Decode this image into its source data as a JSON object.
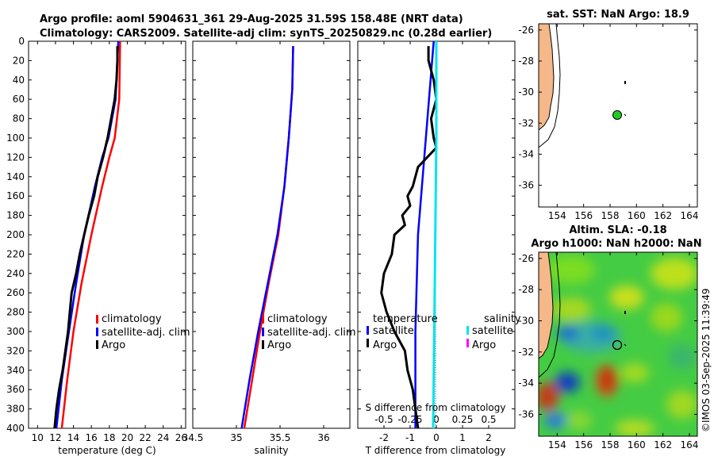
{
  "header": {
    "line1": "Argo profile: aoml 5904631_361 29-Aug-2025 31.59S 158.48E (NRT data)",
    "line2": "Climatology: CARS2009. Satellite-adj clim: synTS_20250829.nc (0.28d earlier)"
  },
  "colors": {
    "climatology": "#ff0000",
    "satellite": "#0000ff",
    "argo": "#000000",
    "sat_salinity": "#00e5ee",
    "argo_salinity": "#ff00ff",
    "land": "#f5b88a"
  },
  "chart_data": [
    {
      "type": "line",
      "id": "temperature",
      "xlabel": "temperature (deg C)",
      "ylim": [
        0,
        400
      ],
      "xlim": [
        9,
        26.5
      ],
      "xticks": [
        "10",
        "12",
        "14",
        "16",
        "18",
        "20",
        "22",
        "24",
        "26"
      ],
      "yticks": [
        "0",
        "20",
        "40",
        "60",
        "80",
        "100",
        "120",
        "140",
        "160",
        "180",
        "200",
        "220",
        "240",
        "260",
        "280",
        "300",
        "320",
        "340",
        "360",
        "380",
        "400"
      ],
      "legend": [
        "climatology",
        "satellite-adj. clim",
        "Argo"
      ],
      "series": [
        {
          "name": "climatology",
          "depth": [
            0,
            60,
            100,
            120,
            150,
            200,
            250,
            300,
            350,
            400
          ],
          "values": [
            19.2,
            19.1,
            18.6,
            18.0,
            17.2,
            16.0,
            14.9,
            14.0,
            13.3,
            12.7
          ]
        },
        {
          "name": "satellite-adj. clim",
          "depth": [
            0,
            60,
            100,
            120,
            150,
            200,
            250,
            300,
            350,
            400
          ],
          "values": [
            19.0,
            18.7,
            17.9,
            17.2,
            16.4,
            15.2,
            14.3,
            13.5,
            12.7,
            12.1
          ]
        },
        {
          "name": "Argo",
          "depth": [
            5,
            20,
            40,
            60,
            80,
            100,
            120,
            140,
            160,
            180,
            200,
            220,
            240,
            260,
            280,
            300,
            320,
            340,
            360,
            380,
            400
          ],
          "values": [
            18.9,
            18.9,
            18.8,
            18.6,
            18.2,
            17.8,
            17.3,
            16.7,
            16.3,
            15.7,
            15.2,
            14.7,
            14.3,
            13.8,
            13.6,
            13.4,
            13.1,
            12.8,
            12.4,
            12.1,
            11.9
          ]
        }
      ]
    },
    {
      "type": "line",
      "id": "salinity",
      "xlabel": "salinity",
      "ylim": [
        0,
        400
      ],
      "xlim": [
        34.5,
        36.3
      ],
      "xticks": [
        "34.5",
        "35",
        "35.5",
        "36"
      ],
      "legend": [
        "climatology",
        "satellite-adj. clim",
        "Argo"
      ],
      "series": [
        {
          "name": "climatology",
          "depth": [
            5,
            50,
            100,
            150,
            200,
            250,
            300,
            350,
            400
          ],
          "values": [
            35.65,
            35.64,
            35.6,
            35.55,
            35.48,
            35.37,
            35.27,
            35.18,
            35.09
          ]
        },
        {
          "name": "satellite-adj. clim",
          "depth": [
            5,
            50,
            100,
            150,
            200,
            250,
            300,
            350,
            400
          ],
          "values": [
            35.65,
            35.64,
            35.6,
            35.55,
            35.47,
            35.36,
            35.25,
            35.15,
            35.06
          ]
        }
      ]
    },
    {
      "type": "line",
      "id": "difference",
      "xlabel": "T difference from climatology",
      "xlabel_top": "S difference from climatology",
      "ylim": [
        0,
        400
      ],
      "xlim": [
        -3,
        3
      ],
      "xticks": [
        "-2",
        "-1",
        "0",
        "1",
        "2"
      ],
      "xticks_top": [
        "-0.5",
        "-0.25",
        "0",
        "0.25",
        "0.5"
      ],
      "legend_headers": [
        "temperature",
        "salinity"
      ],
      "legend_left": [
        "satellite",
        "Argo"
      ],
      "legend_right": [
        "satellite",
        "Argo"
      ],
      "series": [
        {
          "name": "T satellite",
          "depth": [
            0,
            100,
            200,
            300,
            400
          ],
          "values": [
            -0.1,
            -0.4,
            -0.7,
            -0.8,
            -0.8
          ]
        },
        {
          "name": "T Argo",
          "depth": [
            5,
            20,
            40,
            60,
            80,
            100,
            110,
            130,
            150,
            160,
            170,
            180,
            190,
            200,
            220,
            240,
            260,
            280,
            300,
            320,
            340,
            360,
            380,
            400
          ],
          "values": [
            -0.3,
            -0.3,
            -0.1,
            0,
            -0.2,
            -0.1,
            0.0,
            -0.7,
            -0.9,
            -1.1,
            -1.0,
            -1.3,
            -1.2,
            -1.6,
            -1.7,
            -2.0,
            -2.1,
            -1.9,
            -1.6,
            -1.2,
            -1.1,
            -0.9,
            -0.8,
            -0.7
          ]
        },
        {
          "name": "S satellite",
          "depth": [
            0,
            100,
            200,
            300,
            400
          ],
          "values": [
            0,
            0,
            -0.01,
            -0.02,
            -0.03
          ]
        }
      ]
    }
  ],
  "maps": {
    "sst": {
      "title": "sat. SST: NaN Argo: 18.9",
      "xticks": [
        "154",
        "156",
        "158",
        "160",
        "162",
        "164"
      ],
      "yticks": [
        "-26",
        "-28",
        "-30",
        "-32",
        "-34",
        "-36"
      ]
    },
    "sla": {
      "title1": "Altim. SLA: -0.18",
      "title2": "Argo h1000: NaN h2000: NaN",
      "xticks": [
        "154",
        "156",
        "158",
        "160",
        "162",
        "164"
      ],
      "yticks": [
        "-26",
        "-28",
        "-30",
        "-32",
        "-34",
        "-36"
      ]
    }
  },
  "footer": {
    "stamp": "©IMOS 03-Sep-2025 11:39:49"
  }
}
